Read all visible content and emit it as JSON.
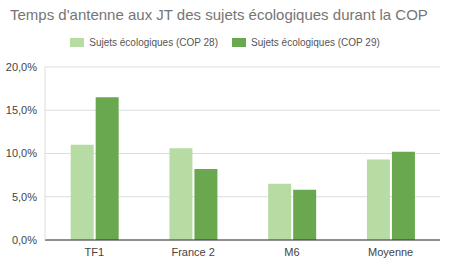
{
  "chart_data": {
    "type": "bar",
    "title": "Temps d'antenne aux JT des sujets écologiques durant la COP",
    "categories": [
      "TF1",
      "France 2",
      "M6",
      "Moyenne"
    ],
    "series": [
      {
        "name": "Sujets écologiques (COP 28)",
        "color": "#b6dca3",
        "values": [
          11.0,
          10.6,
          6.5,
          9.3
        ]
      },
      {
        "name": "Sujets écologiques (COP 29)",
        "color": "#6aa84f",
        "values": [
          16.5,
          8.2,
          5.8,
          10.2
        ]
      }
    ],
    "ylim": [
      0,
      20
    ],
    "yticks": [
      {
        "value": 0,
        "label": "0,0%"
      },
      {
        "value": 5,
        "label": "5,0%"
      },
      {
        "value": 10,
        "label": "10,0%"
      },
      {
        "value": 15,
        "label": "15,0%"
      },
      {
        "value": 20,
        "label": "20,0%"
      }
    ],
    "grid": true,
    "legend": "top"
  }
}
